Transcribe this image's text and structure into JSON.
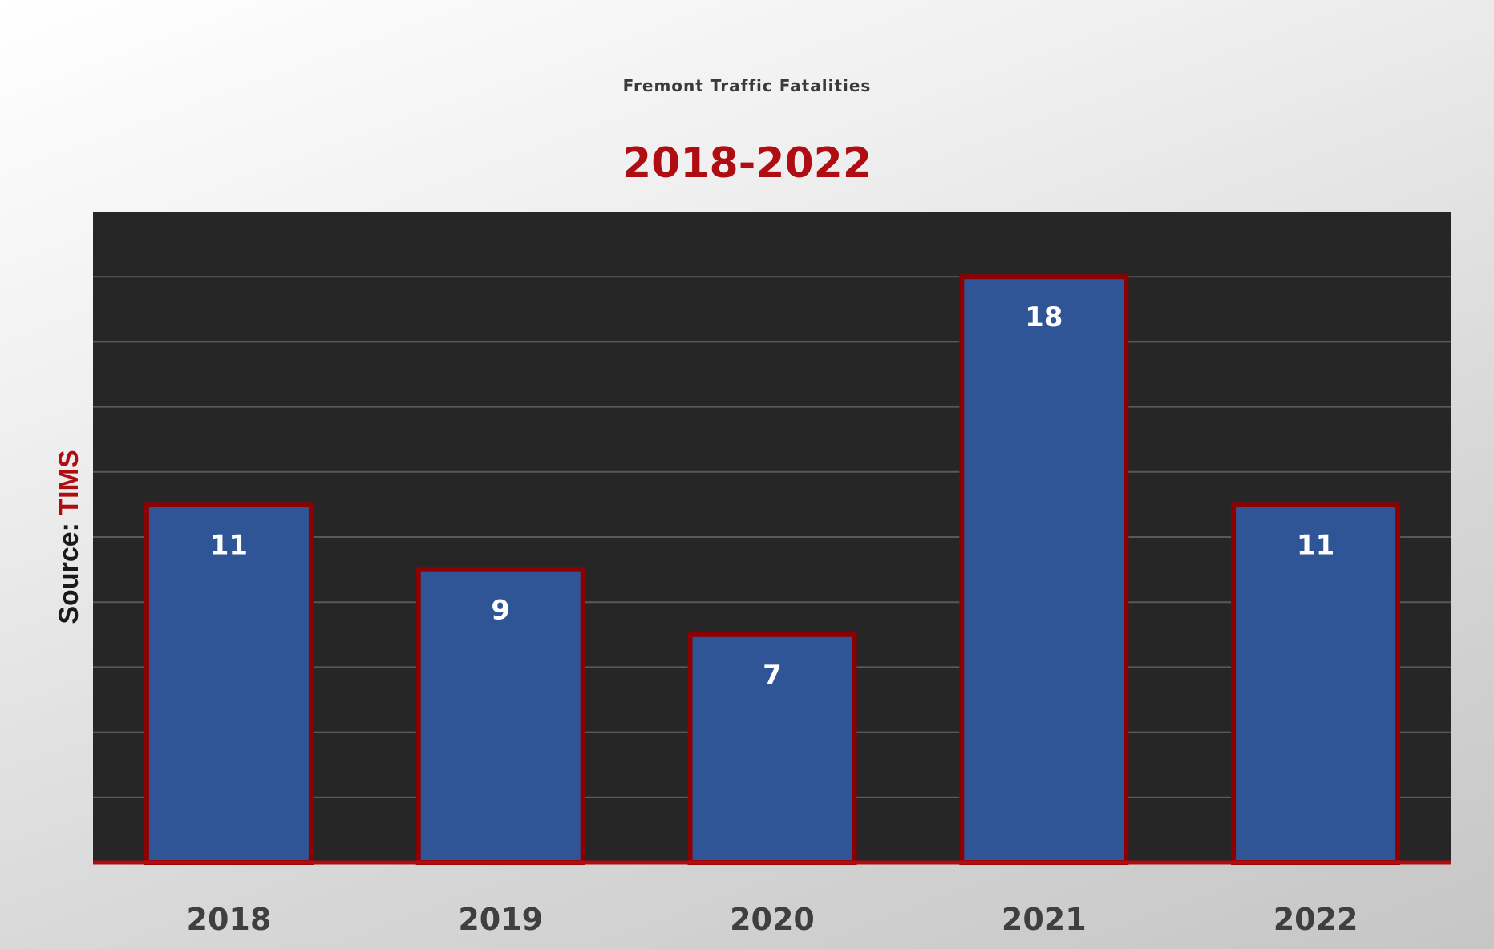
{
  "chart_data": {
    "type": "bar",
    "title": "Fremont Traffic Fatalities",
    "subtitle": "2018-2022",
    "categories": [
      "2018",
      "2019",
      "2020",
      "2021",
      "2022"
    ],
    "values": [
      11,
      9,
      7,
      18,
      11
    ],
    "data_labels": [
      "11",
      "9",
      "7",
      "18",
      "11"
    ],
    "xlabel": "",
    "ylabel": "",
    "ylim": [
      0,
      20
    ],
    "y_axis_labels_shown": false,
    "grid": true,
    "legend": "none",
    "source_prefix": "Source:",
    "source_value": "TIMS",
    "colors": {
      "bar_fill": "#2f5597",
      "bar_outline": "#8b0000",
      "plot_background": "#262626",
      "gridline": "#595959",
      "baseline": "#b00d12",
      "subtitle": "#b00d12",
      "title": "#3a3a3a"
    }
  }
}
